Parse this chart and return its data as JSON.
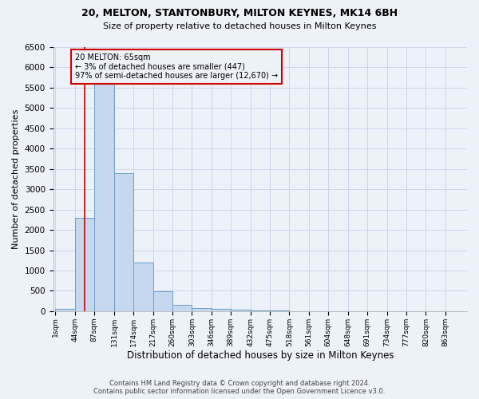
{
  "title1": "20, MELTON, STANTONBURY, MILTON KEYNES, MK14 6BH",
  "title2": "Size of property relative to detached houses in Milton Keynes",
  "xlabel": "Distribution of detached houses by size in Milton Keynes",
  "ylabel": "Number of detached properties",
  "footer1": "Contains HM Land Registry data © Crown copyright and database right 2024.",
  "footer2": "Contains public sector information licensed under the Open Government Licence v3.0.",
  "annotation_line1": "20 MELTON: 65sqm",
  "annotation_line2": "← 3% of detached houses are smaller (447)",
  "annotation_line3": "97% of semi-detached houses are larger (12,670) →",
  "property_size": 65,
  "categories": [
    "1sqm",
    "44sqm",
    "87sqm",
    "131sqm",
    "174sqm",
    "217sqm",
    "260sqm",
    "303sqm",
    "346sqm",
    "389sqm",
    "432sqm",
    "475sqm",
    "518sqm",
    "561sqm",
    "604sqm",
    "648sqm",
    "691sqm",
    "734sqm",
    "777sqm",
    "820sqm",
    "863sqm"
  ],
  "bin_edges": [
    1,
    44,
    87,
    131,
    174,
    217,
    260,
    303,
    346,
    389,
    432,
    475,
    518,
    561,
    604,
    648,
    691,
    734,
    777,
    820,
    863,
    906
  ],
  "values": [
    50,
    2300,
    5800,
    3400,
    1200,
    480,
    160,
    80,
    50,
    30,
    20,
    20,
    0,
    0,
    0,
    0,
    0,
    0,
    0,
    0,
    0
  ],
  "bar_color": "#c5d8f0",
  "bar_edge_color": "#6a9ec8",
  "grid_color": "#ccd5e8",
  "background_color": "#edf1f8",
  "vline_color": "#cc0000",
  "annotation_box_color": "#cc0000",
  "ylim": [
    0,
    6500
  ],
  "yticks": [
    0,
    500,
    1000,
    1500,
    2000,
    2500,
    3000,
    3500,
    4000,
    4500,
    5000,
    5500,
    6000,
    6500
  ]
}
